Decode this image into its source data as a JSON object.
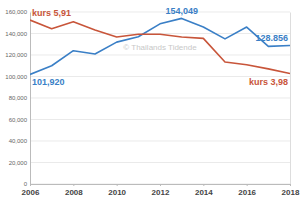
{
  "chart_data": {
    "type": "line",
    "annotations": [
      {
        "text": "© Thailands Tidende"
      }
    ],
    "x": [
      2006,
      2007,
      2008,
      2009,
      2010,
      2011,
      2012,
      2013,
      2014,
      2015,
      2016,
      2017,
      2018
    ],
    "xlim": [
      2006,
      2018
    ],
    "xticks": [
      2006,
      2008,
      2010,
      2012,
      2014,
      2016,
      2018
    ],
    "ylim": [
      0,
      160000
    ],
    "yticks": [
      0,
      {
        "value": 20000,
        "label": "20,000"
      },
      {
        "value": 40000,
        "label": "40,000"
      },
      {
        "value": 60000,
        "label": "60,000"
      },
      {
        "value": 80000,
        "label": "80,000"
      },
      {
        "value": 100000,
        "label": "100,000"
      },
      {
        "value": 120000,
        "label": "120,000"
      },
      {
        "value": 140000,
        "label": "140,000"
      },
      {
        "value": 160000,
        "label": "160,000"
      }
    ],
    "y2lim": [
      0,
      6.2
    ],
    "grid": true,
    "series": [
      {
        "color": "#3a7fc6",
        "values": [
          101920,
          110000,
          124000,
          121000,
          132000,
          137000,
          149000,
          154049,
          146000,
          135000,
          146000,
          128000,
          128856
        ],
        "value_labels": [
          "101,920",
          null,
          null,
          null,
          null,
          null,
          null,
          "154,049",
          null,
          null,
          null,
          null,
          "128.856"
        ]
      },
      {
        "color": "#c8553a",
        "axis": "y2",
        "values": [
          5.91,
          5.6,
          5.85,
          5.55,
          5.3,
          5.4,
          5.4,
          5.3,
          5.25,
          4.4,
          4.3,
          4.15,
          3.98
        ],
        "value_labels": [
          "kurs 5,91",
          null,
          null,
          null,
          null,
          null,
          null,
          null,
          null,
          null,
          null,
          null,
          "kurs 3,98"
        ]
      }
    ]
  }
}
